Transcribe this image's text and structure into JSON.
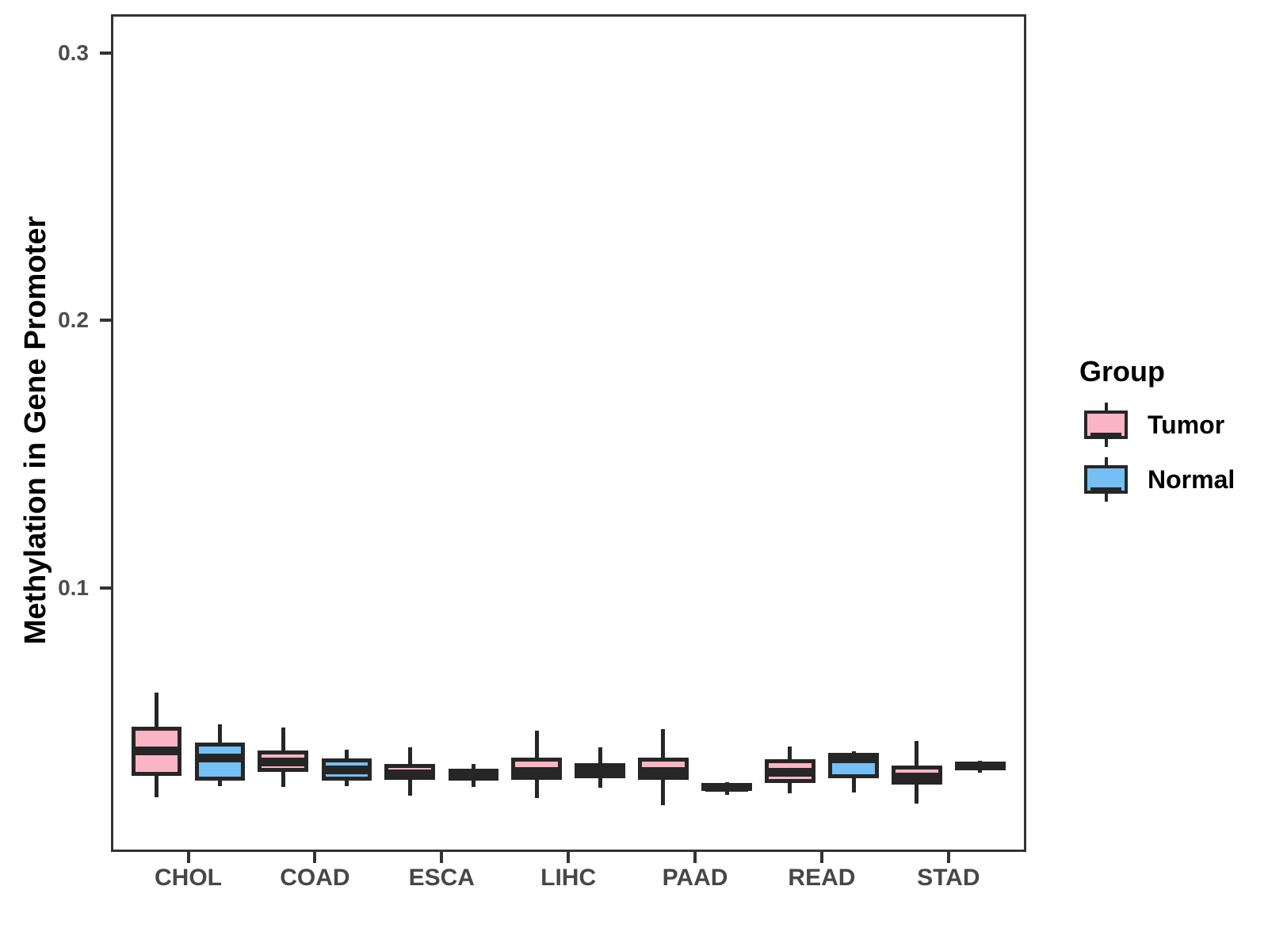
{
  "figure": {
    "legend": {
      "title": "Group",
      "items": [
        {
          "label": "Tumor",
          "color": "#FBB4C5"
        },
        {
          "label": "Normal",
          "color": "#74BFF4"
        }
      ]
    }
  },
  "colors": {
    "tumor_fill": "#FBB4C5",
    "normal_fill": "#74BFF4",
    "box_line": "#262626",
    "panel_border": "#333333",
    "tick_text": "#4d4d4d",
    "background": "#ffffff"
  },
  "chart_data": {
    "type": "boxplot",
    "title": "",
    "xlabel": "",
    "ylabel": "Methylation in Gene Promoter",
    "categories": [
      "CHOL",
      "COAD",
      "ESCA",
      "LIHC",
      "PAAD",
      "READ",
      "STAD"
    ],
    "y_ticks": [
      {
        "value": 0.1,
        "label": "0.1"
      },
      {
        "value": 0.2,
        "label": "0.2"
      },
      {
        "value": 0.3,
        "label": "0.3"
      }
    ],
    "ylim": [
      0.0022,
      0.3136
    ],
    "grid": false,
    "legend_position": "right",
    "series": [
      {
        "name": "Tumor",
        "color": "#FBB4C5",
        "boxes": [
          {
            "category": "CHOL",
            "whisker_low": 0.0217,
            "q1": 0.0297,
            "median": 0.0391,
            "q3": 0.0481,
            "whisker_high": 0.0608
          },
          {
            "category": "COAD",
            "whisker_low": 0.0255,
            "q1": 0.0313,
            "median": 0.035,
            "q3": 0.0392,
            "whisker_high": 0.0479
          },
          {
            "category": "ESCA",
            "whisker_low": 0.0223,
            "q1": 0.0282,
            "median": 0.0304,
            "q3": 0.0343,
            "whisker_high": 0.0403
          },
          {
            "category": "LIHC",
            "whisker_low": 0.0214,
            "q1": 0.0284,
            "median": 0.0314,
            "q3": 0.0366,
            "whisker_high": 0.0467
          },
          {
            "category": "PAAD",
            "whisker_low": 0.0189,
            "q1": 0.0284,
            "median": 0.0315,
            "q3": 0.0366,
            "whisker_high": 0.0471
          },
          {
            "category": "READ",
            "whisker_low": 0.0231,
            "q1": 0.0272,
            "median": 0.0312,
            "q3": 0.036,
            "whisker_high": 0.0406
          },
          {
            "category": "STAD",
            "whisker_low": 0.0193,
            "q1": 0.0264,
            "median": 0.0294,
            "q3": 0.0336,
            "whisker_high": 0.0427
          }
        ]
      },
      {
        "name": "Normal",
        "color": "#74BFF4",
        "boxes": [
          {
            "category": "CHOL",
            "whisker_low": 0.026,
            "q1": 0.028,
            "median": 0.0363,
            "q3": 0.0422,
            "whisker_high": 0.0489
          },
          {
            "category": "COAD",
            "whisker_low": 0.026,
            "q1": 0.0279,
            "median": 0.032,
            "q3": 0.0363,
            "whisker_high": 0.0395
          },
          {
            "category": "ESCA",
            "whisker_low": 0.0255,
            "q1": 0.028,
            "median": 0.0302,
            "q3": 0.0324,
            "whisker_high": 0.0341
          },
          {
            "category": "LIHC",
            "whisker_low": 0.0253,
            "q1": 0.029,
            "median": 0.0315,
            "q3": 0.0346,
            "whisker_high": 0.0403
          },
          {
            "category": "PAAD",
            "whisker_low": 0.0226,
            "q1": 0.024,
            "median": 0.0255,
            "q3": 0.027,
            "whisker_high": 0.0275
          },
          {
            "category": "READ",
            "whisker_low": 0.0234,
            "q1": 0.029,
            "median": 0.0362,
            "q3": 0.0382,
            "whisker_high": 0.0388
          },
          {
            "category": "STAD",
            "whisker_low": 0.031,
            "q1": 0.0318,
            "median": 0.0334,
            "q3": 0.035,
            "whisker_high": 0.0355
          }
        ]
      }
    ],
    "layout": {
      "cat_start_frac": 0.08225,
      "cat_step_frac": 0.13915,
      "dodge_frac": 0.0349,
      "box_width_frac": 0.0554
    }
  }
}
